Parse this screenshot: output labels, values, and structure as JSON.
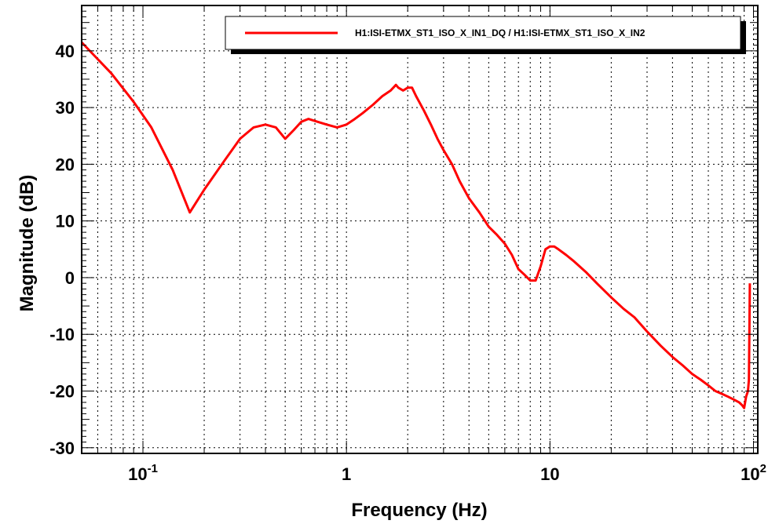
{
  "chart_data": {
    "type": "line",
    "title": "",
    "xlabel": "Frequency (Hz)",
    "ylabel": "Magnitude (dB)",
    "x_scale": "log",
    "xlim": [
      0.05,
      105
    ],
    "ylim": [
      -31,
      48
    ],
    "grid": true,
    "legend_position": "top-right",
    "x_ticks": [
      {
        "base": "10",
        "exp": "-1",
        "value": 0.1
      },
      {
        "base": "1",
        "exp": "",
        "value": 1
      },
      {
        "base": "10",
        "exp": "",
        "value": 10
      },
      {
        "base": "10",
        "exp": "2",
        "value": 100
      }
    ],
    "y_ticks": [
      "-30",
      "-20",
      "-10",
      "0",
      "10",
      "20",
      "30",
      "40"
    ],
    "series": [
      {
        "name": "H1:ISI-ETMX_ST1_ISO_X_IN1_DQ / H1:ISI-ETMX_ST1_ISO_X_IN2",
        "color": "#ff0000",
        "x": [
          0.05,
          0.07,
          0.09,
          0.11,
          0.14,
          0.17,
          0.2,
          0.25,
          0.3,
          0.35,
          0.4,
          0.45,
          0.5,
          0.55,
          0.6,
          0.65,
          0.72,
          0.8,
          0.9,
          1.0,
          1.1,
          1.2,
          1.35,
          1.5,
          1.65,
          1.75,
          1.8,
          1.9,
          2.0,
          2.1,
          2.2,
          2.4,
          2.6,
          2.8,
          3.0,
          3.3,
          3.6,
          4.0,
          4.5,
          5.0,
          5.5,
          6.0,
          6.5,
          7.0,
          7.5,
          8.0,
          8.5,
          9.0,
          9.5,
          10.0,
          10.5,
          11.0,
          12.0,
          13.0,
          15.0,
          17.0,
          20.0,
          23.0,
          26.0,
          30.0,
          35.0,
          40.0,
          45.0,
          50.0,
          55.0,
          60.0,
          65.0,
          70.0,
          75.0,
          80.0,
          85.0,
          88.0,
          90.0,
          92.0,
          94.0,
          95.0,
          96.0
        ],
        "values": [
          41.5,
          36,
          31,
          26.5,
          19,
          11.5,
          15.5,
          20.5,
          24.5,
          26.5,
          27,
          26.5,
          24.5,
          26,
          27.5,
          28,
          27.5,
          27,
          26.5,
          27,
          28,
          29,
          30.5,
          32,
          33,
          34,
          33.5,
          33,
          33.5,
          33.5,
          32,
          29.5,
          27,
          24.5,
          22.5,
          20,
          17,
          14,
          11.5,
          9,
          7.5,
          6,
          4,
          1.5,
          0.5,
          -0.5,
          -0.5,
          2,
          5,
          5.5,
          5.5,
          5,
          4,
          3,
          1,
          -1,
          -3.5,
          -5.5,
          -7,
          -9.5,
          -12,
          -14,
          -15.5,
          -17,
          -18,
          -19,
          -20,
          -20.5,
          -21,
          -21.5,
          -22,
          -22.5,
          -23,
          -21,
          -20,
          -18,
          -1
        ]
      }
    ]
  }
}
